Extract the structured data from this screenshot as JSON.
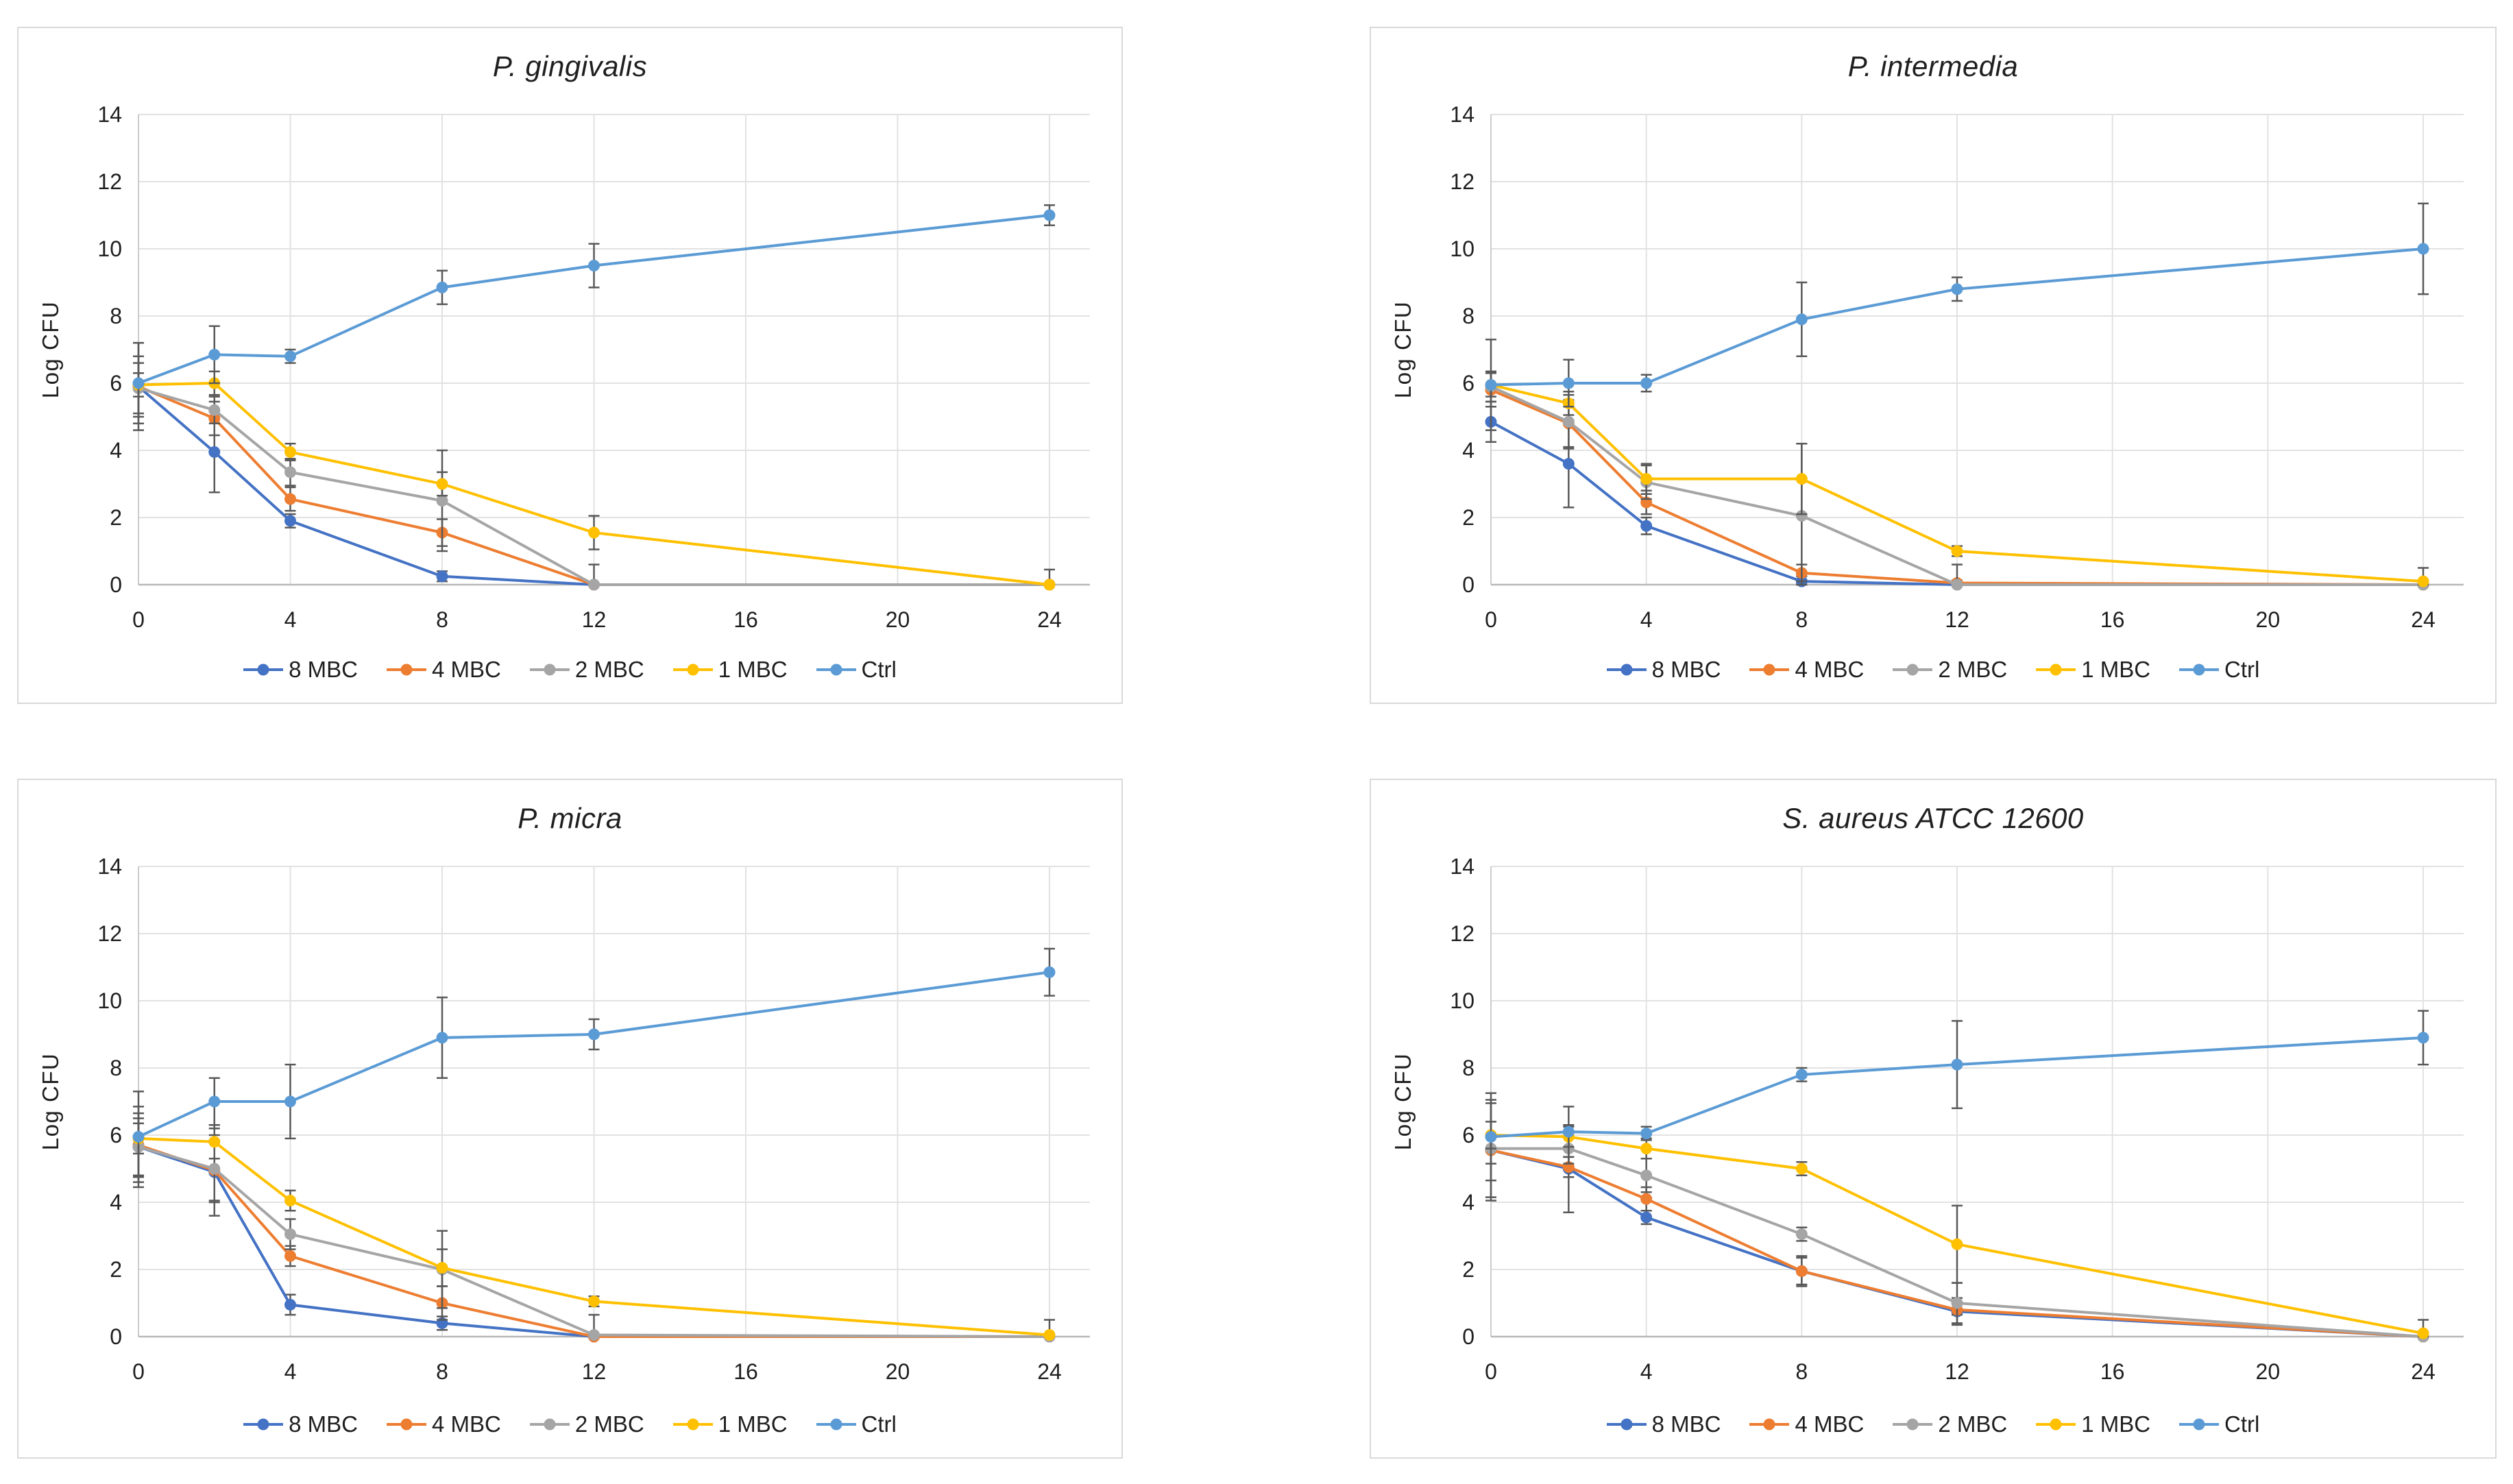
{
  "style": {
    "background": "#ffffff",
    "panel_border": "#d9d9d9",
    "gridline": "#e2e2e2",
    "axis_line_x": "#b7b7b7",
    "axis_line_y": "#cccccc",
    "error_bar": "#595959",
    "text": "#1f1f1f",
    "series_colors": {
      "8 MBC": "#4472C4",
      "4 MBC": "#ED7D31",
      "2 MBC": "#A5A5A5",
      "1 MBC": "#FFC000",
      "Ctrl": "#5B9BD5"
    }
  },
  "legend_labels": [
    "8 MBC",
    "4 MBC",
    "2 MBC",
    "1 MBC",
    "Ctrl"
  ],
  "chart_data": [
    {
      "type": "line",
      "title": "P. gingivalis",
      "xlabel": "",
      "ylabel": "Log CFU",
      "x": [
        0,
        2,
        4,
        8,
        12,
        24
      ],
      "xticks": [
        0,
        4,
        8,
        12,
        16,
        20,
        24
      ],
      "yticks": [
        0,
        2,
        4,
        6,
        8,
        10,
        12,
        14
      ],
      "xlim": [
        0,
        24
      ],
      "ylim": [
        0,
        14
      ],
      "grid": true,
      "legend_position": "bottom",
      "series": [
        {
          "name": "8 MBC",
          "color": "#4472C4",
          "values": [
            5.9,
            3.95,
            1.9,
            0.25,
            0.0,
            0.0
          ],
          "errors": [
            1.3,
            1.2,
            0.2,
            0.15,
            0.0,
            0.0
          ]
        },
        {
          "name": "4 MBC",
          "color": "#ED7D31",
          "values": [
            5.9,
            4.95,
            2.55,
            1.55,
            0.0,
            0.0
          ],
          "errors": [
            0.9,
            0.5,
            0.35,
            0.4,
            0.0,
            0.0
          ]
        },
        {
          "name": "2 MBC",
          "color": "#A5A5A5",
          "values": [
            5.85,
            5.2,
            3.35,
            2.5,
            0.0,
            0.0
          ],
          "errors": [
            0.75,
            0.4,
            0.4,
            1.5,
            0.6,
            0.0
          ]
        },
        {
          "name": "1 MBC",
          "color": "#FFC000",
          "values": [
            5.95,
            6.0,
            3.95,
            3.0,
            1.55,
            0.0
          ],
          "errors": [
            0.35,
            0.35,
            0.25,
            0.35,
            0.5,
            0.45
          ]
        },
        {
          "name": "Ctrl",
          "color": "#5B9BD5",
          "values": [
            6.0,
            6.85,
            6.8,
            8.85,
            9.5,
            11.0
          ],
          "errors": [
            1.2,
            0.85,
            0.2,
            0.5,
            0.65,
            0.3
          ]
        }
      ]
    },
    {
      "type": "line",
      "title": "P. intermedia",
      "xlabel": "",
      "ylabel": "Log CFU",
      "x": [
        0,
        2,
        4,
        8,
        12,
        24
      ],
      "xticks": [
        0,
        4,
        8,
        12,
        16,
        20,
        24
      ],
      "yticks": [
        0,
        2,
        4,
        6,
        8,
        10,
        12,
        14
      ],
      "xlim": [
        0,
        24
      ],
      "ylim": [
        0,
        14
      ],
      "grid": true,
      "legend_position": "bottom",
      "series": [
        {
          "name": "8 MBC",
          "color": "#4472C4",
          "values": [
            4.85,
            3.6,
            1.75,
            0.1,
            0.0,
            0.0
          ],
          "errors": [
            0.6,
            1.3,
            0.25,
            0.15,
            0.0,
            0.0
          ]
        },
        {
          "name": "4 MBC",
          "color": "#ED7D31",
          "values": [
            5.8,
            4.8,
            2.45,
            0.35,
            0.05,
            0.0
          ],
          "errors": [
            0.5,
            0.7,
            0.35,
            0.25,
            0.08,
            0.0
          ]
        },
        {
          "name": "2 MBC",
          "color": "#A5A5A5",
          "values": [
            5.9,
            4.85,
            3.05,
            2.05,
            0.0,
            0.0
          ],
          "errors": [
            0.45,
            0.8,
            0.5,
            2.15,
            0.6,
            0.0
          ]
        },
        {
          "name": "1 MBC",
          "color": "#FFC000",
          "values": [
            5.95,
            5.4,
            3.15,
            3.15,
            1.0,
            0.1
          ],
          "errors": [
            0.35,
            0.35,
            0.45,
            1.05,
            0.15,
            0.4
          ]
        },
        {
          "name": "Ctrl",
          "color": "#5B9BD5",
          "values": [
            5.95,
            6.0,
            6.0,
            7.9,
            8.8,
            10.0
          ],
          "errors": [
            1.35,
            0.7,
            0.25,
            1.1,
            0.35,
            1.35
          ]
        }
      ]
    },
    {
      "type": "line",
      "title": "P. micra",
      "xlabel": "",
      "ylabel": "Log CFU",
      "x": [
        0,
        2,
        4,
        8,
        12,
        24
      ],
      "xticks": [
        0,
        4,
        8,
        12,
        16,
        20,
        24
      ],
      "yticks": [
        0,
        2,
        4,
        6,
        8,
        10,
        12,
        14
      ],
      "xlim": [
        0,
        24
      ],
      "ylim": [
        0,
        14
      ],
      "grid": true,
      "legend_position": "bottom",
      "series": [
        {
          "name": "8 MBC",
          "color": "#4472C4",
          "values": [
            5.65,
            4.9,
            0.95,
            0.4,
            0.0,
            0.0
          ],
          "errors": [
            1.2,
            1.3,
            0.3,
            0.2,
            0.0,
            0.0
          ]
        },
        {
          "name": "4 MBC",
          "color": "#ED7D31",
          "values": [
            5.7,
            4.95,
            2.4,
            1.0,
            0.0,
            0.0
          ],
          "errors": [
            0.95,
            0.9,
            0.3,
            0.5,
            0.0,
            0.0
          ]
        },
        {
          "name": "2 MBC",
          "color": "#A5A5A5",
          "values": [
            5.65,
            5.0,
            3.05,
            2.0,
            0.05,
            0.0
          ],
          "errors": [
            0.85,
            1.0,
            0.45,
            1.15,
            0.6,
            0.0
          ]
        },
        {
          "name": "1 MBC",
          "color": "#FFC000",
          "values": [
            5.9,
            5.8,
            4.05,
            2.05,
            1.05,
            0.05
          ],
          "errors": [
            0.45,
            0.5,
            0.3,
            0.55,
            0.15,
            0.45
          ]
        },
        {
          "name": "Ctrl",
          "color": "#5B9BD5",
          "values": [
            5.95,
            7.0,
            7.0,
            8.9,
            9.0,
            10.85
          ],
          "errors": [
            1.35,
            0.7,
            1.1,
            1.2,
            0.45,
            0.7
          ]
        }
      ]
    },
    {
      "type": "line",
      "title": "S. aureus ATCC 12600",
      "xlabel": "",
      "ylabel": "Log CFU",
      "x": [
        0,
        2,
        4,
        8,
        12,
        24
      ],
      "xticks": [
        0,
        4,
        8,
        12,
        16,
        20,
        24
      ],
      "yticks": [
        0,
        2,
        4,
        6,
        8,
        10,
        12,
        14
      ],
      "xlim": [
        0,
        24
      ],
      "ylim": [
        0,
        14
      ],
      "grid": true,
      "legend_position": "bottom",
      "series": [
        {
          "name": "8 MBC",
          "color": "#4472C4",
          "values": [
            5.55,
            5.0,
            3.55,
            1.95,
            0.75,
            0.0
          ],
          "errors": [
            1.4,
            1.3,
            0.2,
            0.4,
            0.4,
            0.0
          ]
        },
        {
          "name": "4 MBC",
          "color": "#ED7D31",
          "values": [
            5.55,
            5.05,
            4.1,
            1.95,
            0.8,
            0.0
          ],
          "errors": [
            1.5,
            0.3,
            0.35,
            0.45,
            0.15,
            0.0
          ]
        },
        {
          "name": "2 MBC",
          "color": "#A5A5A5",
          "values": [
            5.6,
            5.6,
            4.8,
            3.05,
            1.0,
            0.0
          ],
          "errors": [
            0.45,
            0.45,
            0.5,
            0.2,
            0.6,
            0.0
          ]
        },
        {
          "name": "1 MBC",
          "color": "#FFC000",
          "values": [
            6.0,
            5.95,
            5.6,
            5.0,
            2.75,
            0.1
          ],
          "errors": [
            0.4,
            0.3,
            0.3,
            0.2,
            1.15,
            0.4
          ]
        },
        {
          "name": "Ctrl",
          "color": "#5B9BD5",
          "values": [
            5.95,
            6.1,
            6.05,
            7.8,
            8.1,
            8.9
          ],
          "errors": [
            1.3,
            0.75,
            0.2,
            0.2,
            1.3,
            0.8
          ]
        }
      ]
    }
  ]
}
